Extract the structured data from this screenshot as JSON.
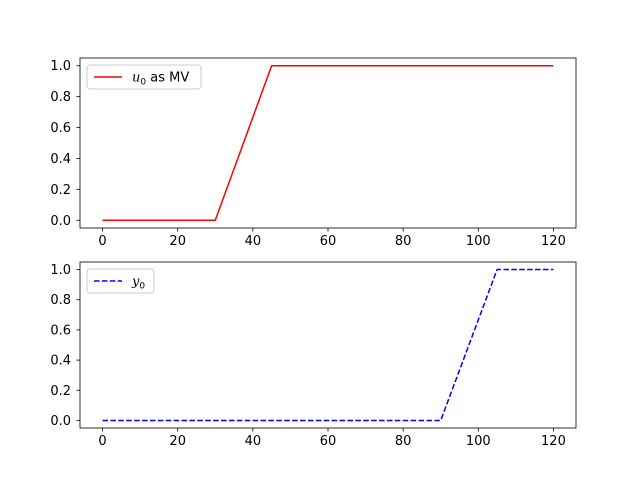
{
  "chart_data": [
    {
      "type": "line",
      "title": "",
      "xlabel": "",
      "ylabel": "",
      "xlim": [
        -6,
        126
      ],
      "ylim": [
        -0.05,
        1.05
      ],
      "xticks": [
        "0",
        "20",
        "40",
        "60",
        "80",
        "100",
        "120"
      ],
      "yticks": [
        "0.0",
        "0.2",
        "0.4",
        "0.6",
        "0.8",
        "1.0"
      ],
      "grid": false,
      "legend": "upper left",
      "series": [
        {
          "name": "$u_0$ as MV",
          "name_base": "u",
          "name_sub": "0",
          "name_rest": " as MV",
          "color": "#ff0000",
          "style": "solid",
          "x": [
            0,
            30,
            45,
            120
          ],
          "y": [
            0,
            0,
            1,
            1
          ]
        }
      ]
    },
    {
      "type": "line",
      "title": "",
      "xlabel": "",
      "ylabel": "",
      "xlim": [
        -6,
        126
      ],
      "ylim": [
        -0.05,
        1.05
      ],
      "xticks": [
        "0",
        "20",
        "40",
        "60",
        "80",
        "100",
        "120"
      ],
      "yticks": [
        "0.0",
        "0.2",
        "0.4",
        "0.6",
        "0.8",
        "1.0"
      ],
      "grid": false,
      "legend": "upper left",
      "series": [
        {
          "name": "$y_0$",
          "name_base": "y",
          "name_sub": "0",
          "name_rest": "",
          "color": "#0000ff",
          "style": "dashed",
          "x": [
            0,
            90,
            105,
            120
          ],
          "y": [
            0,
            0,
            1,
            1
          ]
        }
      ]
    }
  ]
}
